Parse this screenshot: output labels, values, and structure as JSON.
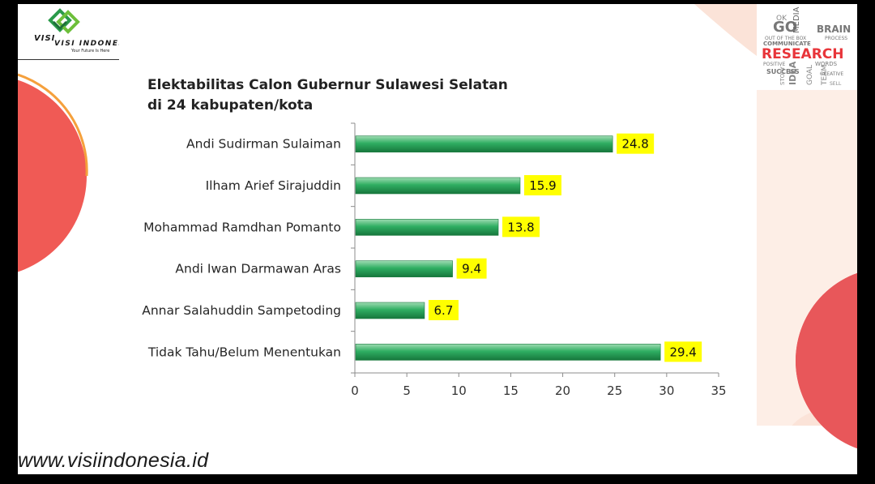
{
  "brand": {
    "logo_name": "VISI INDONESIA",
    "tagline": "Your Future Is Here",
    "website": "www.visiindonesia.id",
    "accent_red": "#f05a55",
    "accent_peach": "#fbe3d8"
  },
  "research_image": {
    "headline": "RESEARCH",
    "words": [
      "GO",
      "MEDIA",
      "BRAIN",
      "OK",
      "PROCESS",
      "COMMUNICATE",
      "POSITIVE",
      "SUCCESS",
      "CREATIVE",
      "GOAL",
      "TEAM",
      "WORDS",
      "IDEA",
      "STORY",
      "SELL"
    ]
  },
  "chart_data": {
    "type": "bar",
    "orientation": "horizontal",
    "title_line1": "Elektabilitas Calon Gubernur Sulawesi Selatan",
    "title_line2": "di 24 kabupaten/kota",
    "categories": [
      "Andi Sudirman Sulaiman",
      "Ilham Arief Sirajuddin",
      "Mohammad Ramdhan Pomanto",
      "Andi Iwan Darmawan Aras",
      "Annar Salahuddin Sampetoding",
      "Tidak Tahu/Belum Menentukan"
    ],
    "values": [
      24.8,
      15.9,
      13.8,
      9.4,
      6.7,
      29.4
    ],
    "data_labels": [
      "24.8",
      "15.9",
      "13.8",
      "9.4",
      "6.7",
      "29.4"
    ],
    "xlim": [
      0,
      35
    ],
    "xticks": [
      "0",
      "5",
      "10",
      "15",
      "20",
      "25",
      "30",
      "35"
    ],
    "grid": false,
    "legend": "none",
    "bar_color": "#27a35a",
    "label_bg": "#ffff00"
  }
}
